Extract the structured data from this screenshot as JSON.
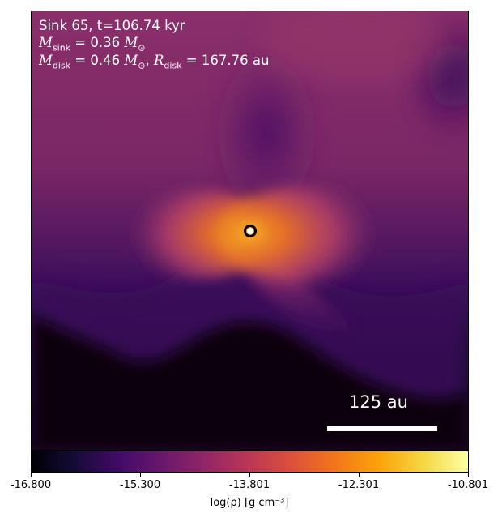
{
  "annotation": {
    "line1": "Sink 65, t=106.74 kyr",
    "line2_sym": "M",
    "line2_sub": "sink",
    "line2_val": " = 0.36",
    "line2_unit_sub": "⊙",
    "line3_sym": "M",
    "line3_sub": "disk",
    "line3_val": " = 0.46",
    "line3_unit_sub": "⊙",
    "line3_sep": ", ",
    "line3_sym2": "R",
    "line3_sub2": "disk",
    "line3_val2": " = 167.76 au"
  },
  "scale_bar": {
    "label": "125 au"
  },
  "colorbar": {
    "colormap": "inferno",
    "min": -16.8,
    "max": -10.801,
    "tick_labels": [
      "-16.800",
      "-15.300",
      "-13.801",
      "-12.301",
      "-10.801"
    ],
    "label": "log(ρ) [g cm⁻³]"
  },
  "sink": {
    "marker_color": "#ffffff"
  }
}
